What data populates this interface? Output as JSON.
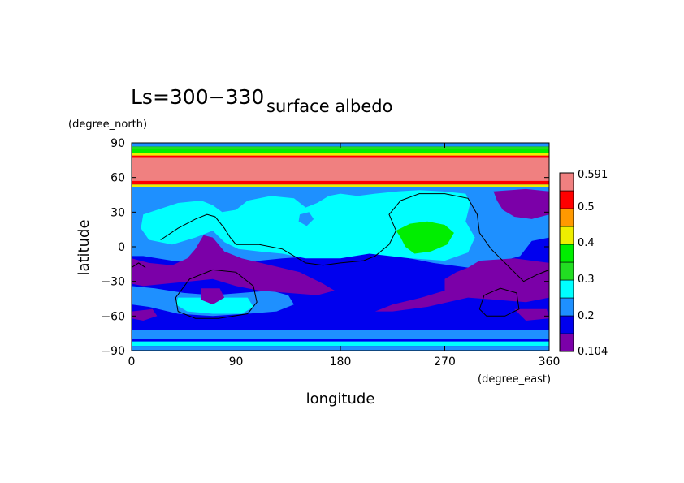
{
  "chart_data": {
    "type": "heatmap",
    "title_main": "Ls=300−330",
    "title_sub": "surface albedo",
    "ylabel": "latitude",
    "xlabel": "longitude",
    "y_unit": "(degree_north)",
    "x_unit": "(degree_east)",
    "xlim": [
      0,
      360
    ],
    "ylim": [
      -90,
      90
    ],
    "x_ticks": [
      0,
      90,
      180,
      270,
      360
    ],
    "y_ticks": [
      90,
      60,
      30,
      0,
      -30,
      -60,
      -90
    ],
    "x_tick_labels": [
      "0",
      "90",
      "180",
      "270",
      "360"
    ],
    "y_tick_labels": [
      "90",
      "60",
      "30",
      "0",
      "−30",
      "−60",
      "−90"
    ],
    "colorbar": {
      "labels": [
        "0.591",
        "0.5",
        "0.4",
        "0.3",
        "0.2",
        "0.104"
      ],
      "levels": [
        0.104,
        0.15,
        0.2,
        0.25,
        0.3,
        0.35,
        0.4,
        0.45,
        0.5,
        0.55,
        0.591
      ],
      "colors": [
        "#7b00a8",
        "#0000ee",
        "#1e90ff",
        "#00ffff",
        "#22dd22",
        "#00ee00",
        "#eeee00",
        "#ff9900",
        "#ff0000",
        "#f08080"
      ]
    },
    "background_color": "#0000ee",
    "regions": [
      {
        "color": "#1e90ff",
        "points": [
          [
            0,
            -8
          ],
          [
            0,
            52
          ],
          [
            30,
            52
          ],
          [
            90,
            52
          ],
          [
            150,
            52
          ],
          [
            200,
            52
          ],
          [
            270,
            52
          ],
          [
            320,
            52
          ],
          [
            360,
            52
          ],
          [
            360,
            8
          ],
          [
            345,
            5
          ],
          [
            335,
            -8
          ],
          [
            310,
            -15
          ],
          [
            290,
            -18
          ],
          [
            260,
            -14
          ],
          [
            230,
            -8
          ],
          [
            200,
            -5
          ],
          [
            160,
            -8
          ],
          [
            130,
            -10
          ],
          [
            110,
            -12
          ],
          [
            85,
            -18
          ],
          [
            60,
            -15
          ],
          [
            35,
            -12
          ],
          [
            10,
            -8
          ]
        ]
      },
      {
        "color": "#1e90ff",
        "points": [
          [
            0,
            -72
          ],
          [
            360,
            -72
          ],
          [
            360,
            -80
          ],
          [
            0,
            -80
          ]
        ]
      },
      {
        "color": "#1e90ff",
        "points": [
          [
            0,
            -34
          ],
          [
            20,
            -36
          ],
          [
            45,
            -40
          ],
          [
            70,
            -42
          ],
          [
            95,
            -40
          ],
          [
            120,
            -38
          ],
          [
            135,
            -42
          ],
          [
            140,
            -50
          ],
          [
            125,
            -56
          ],
          [
            100,
            -58
          ],
          [
            70,
            -60
          ],
          [
            40,
            -58
          ],
          [
            15,
            -52
          ],
          [
            0,
            -50
          ]
        ]
      },
      {
        "color": "#00ffff",
        "points": [
          [
            10,
            28
          ],
          [
            40,
            38
          ],
          [
            60,
            40
          ],
          [
            70,
            36
          ],
          [
            78,
            30
          ],
          [
            90,
            32
          ],
          [
            100,
            40
          ],
          [
            120,
            44
          ],
          [
            140,
            42
          ],
          [
            150,
            34
          ],
          [
            160,
            38
          ],
          [
            170,
            44
          ],
          [
            180,
            46
          ],
          [
            195,
            44
          ],
          [
            210,
            46
          ],
          [
            230,
            48
          ],
          [
            248,
            49
          ],
          [
            268,
            48
          ],
          [
            288,
            46
          ],
          [
            292,
            38
          ],
          [
            288,
            22
          ],
          [
            296,
            8
          ],
          [
            290,
            -5
          ],
          [
            270,
            -12
          ],
          [
            240,
            -10
          ],
          [
            205,
            -6
          ],
          [
            180,
            -10
          ],
          [
            150,
            -10
          ],
          [
            130,
            -6
          ],
          [
            110,
            -4
          ],
          [
            92,
            -2
          ],
          [
            80,
            4
          ],
          [
            70,
            14
          ],
          [
            55,
            8
          ],
          [
            35,
            2
          ],
          [
            15,
            6
          ],
          [
            8,
            16
          ]
        ]
      },
      {
        "color": "#00ffff",
        "points": [
          [
            40,
            -44
          ],
          [
            75,
            -44
          ],
          [
            100,
            -44
          ],
          [
            105,
            -52
          ],
          [
            95,
            -58
          ],
          [
            70,
            -58
          ],
          [
            48,
            -56
          ],
          [
            38,
            -50
          ]
        ]
      },
      {
        "color": "#00ee00",
        "points": [
          [
            228,
            14
          ],
          [
            240,
            20
          ],
          [
            255,
            22
          ],
          [
            270,
            19
          ],
          [
            278,
            12
          ],
          [
            272,
            2
          ],
          [
            258,
            -4
          ],
          [
            244,
            -6
          ],
          [
            236,
            0
          ],
          [
            232,
            8
          ]
        ]
      },
      {
        "color": "#1e90ff",
        "points": [
          [
            145,
            28
          ],
          [
            153,
            30
          ],
          [
            157,
            24
          ],
          [
            151,
            18
          ],
          [
            144,
            22
          ]
        ]
      },
      {
        "color": "#7b00a8",
        "points": [
          [
            0,
            -10
          ],
          [
            15,
            -14
          ],
          [
            35,
            -16
          ],
          [
            48,
            -10
          ],
          [
            55,
            -2
          ],
          [
            62,
            10
          ],
          [
            70,
            8
          ],
          [
            80,
            -4
          ],
          [
            95,
            -10
          ],
          [
            120,
            -16
          ],
          [
            145,
            -22
          ],
          [
            165,
            -32
          ],
          [
            175,
            -38
          ],
          [
            160,
            -42
          ],
          [
            135,
            -40
          ],
          [
            110,
            -38
          ],
          [
            90,
            -34
          ],
          [
            70,
            -28
          ],
          [
            50,
            -30
          ],
          [
            30,
            -32
          ],
          [
            10,
            -34
          ],
          [
            0,
            -32
          ]
        ]
      },
      {
        "color": "#7b00a8",
        "points": [
          [
            290,
            -18
          ],
          [
            300,
            -12
          ],
          [
            330,
            -10
          ],
          [
            360,
            -14
          ],
          [
            360,
            -44
          ],
          [
            340,
            -48
          ],
          [
            315,
            -46
          ],
          [
            290,
            -44
          ],
          [
            255,
            -52
          ],
          [
            225,
            -56
          ],
          [
            210,
            -56
          ],
          [
            225,
            -50
          ],
          [
            250,
            -44
          ],
          [
            270,
            -38
          ],
          [
            270,
            -28
          ],
          [
            280,
            -22
          ]
        ]
      },
      {
        "color": "#7b00a8",
        "points": [
          [
            312,
            48
          ],
          [
            340,
            50
          ],
          [
            360,
            48
          ],
          [
            360,
            28
          ],
          [
            345,
            24
          ],
          [
            330,
            26
          ],
          [
            320,
            32
          ],
          [
            315,
            40
          ]
        ]
      },
      {
        "color": "#7b00a8",
        "points": [
          [
            0,
            -56
          ],
          [
            18,
            -54
          ],
          [
            22,
            -60
          ],
          [
            10,
            -64
          ],
          [
            0,
            -62
          ]
        ]
      },
      {
        "color": "#7b00a8",
        "points": [
          [
            60,
            -36
          ],
          [
            76,
            -36
          ],
          [
            80,
            -44
          ],
          [
            70,
            -50
          ],
          [
            60,
            -46
          ]
        ]
      },
      {
        "color": "#7b00a8",
        "points": [
          [
            330,
            -54
          ],
          [
            358,
            -54
          ],
          [
            360,
            -62
          ],
          [
            340,
            -64
          ]
        ]
      },
      {
        "color": "#f08080",
        "points": [
          [
            0,
            55
          ],
          [
            360,
            55
          ],
          [
            360,
            79
          ],
          [
            0,
            79
          ]
        ]
      },
      {
        "color": "#ff0000",
        "points": [
          [
            0,
            54
          ],
          [
            360,
            54
          ],
          [
            360,
            57
          ],
          [
            0,
            57
          ]
        ]
      },
      {
        "color": "#ff0000",
        "points": [
          [
            0,
            77
          ],
          [
            360,
            77
          ],
          [
            360,
            79
          ],
          [
            0,
            79
          ]
        ]
      },
      {
        "color": "#eeee00",
        "points": [
          [
            0,
            52
          ],
          [
            360,
            52
          ],
          [
            360,
            54
          ],
          [
            0,
            54
          ]
        ]
      },
      {
        "color": "#eeee00",
        "points": [
          [
            0,
            79
          ],
          [
            360,
            79
          ],
          [
            360,
            81
          ],
          [
            0,
            81
          ]
        ]
      },
      {
        "color": "#00ee00",
        "points": [
          [
            0,
            81
          ],
          [
            360,
            81
          ],
          [
            360,
            85
          ],
          [
            0,
            85
          ]
        ]
      },
      {
        "color": "#22dd22",
        "points": [
          [
            0,
            85
          ],
          [
            360,
            85
          ],
          [
            360,
            87
          ],
          [
            0,
            87
          ]
        ]
      },
      {
        "color": "#1e90ff",
        "points": [
          [
            0,
            87
          ],
          [
            360,
            87
          ],
          [
            360,
            90
          ],
          [
            0,
            90
          ]
        ]
      },
      {
        "color": "#00ffff",
        "points": [
          [
            0,
            -82
          ],
          [
            360,
            -82
          ],
          [
            360,
            -86
          ],
          [
            0,
            -86
          ]
        ]
      },
      {
        "color": "#1e90ff",
        "points": [
          [
            0,
            -86
          ],
          [
            360,
            -86
          ],
          [
            360,
            -90
          ],
          [
            0,
            -90
          ]
        ]
      }
    ],
    "topography_contours": [
      [
        [
          25,
          6
        ],
        [
          40,
          16
        ],
        [
          55,
          24
        ],
        [
          65,
          28
        ],
        [
          72,
          26
        ],
        [
          80,
          16
        ],
        [
          85,
          8
        ],
        [
          90,
          2
        ],
        [
          110,
          2
        ],
        [
          130,
          -2
        ],
        [
          150,
          -14
        ],
        [
          165,
          -16
        ],
        [
          180,
          -14
        ],
        [
          200,
          -12
        ],
        [
          210,
          -8
        ],
        [
          222,
          2
        ],
        [
          228,
          14
        ],
        [
          222,
          28
        ],
        [
          232,
          40
        ],
        [
          248,
          46
        ],
        [
          270,
          46
        ],
        [
          290,
          42
        ],
        [
          298,
          28
        ],
        [
          300,
          12
        ],
        [
          310,
          -2
        ],
        [
          320,
          -12
        ],
        [
          330,
          -22
        ],
        [
          338,
          -30
        ],
        [
          350,
          -24
        ],
        [
          360,
          -20
        ]
      ],
      [
        [
          40,
          -56
        ],
        [
          38,
          -44
        ],
        [
          50,
          -28
        ],
        [
          70,
          -20
        ],
        [
          90,
          -22
        ],
        [
          105,
          -34
        ],
        [
          108,
          -48
        ],
        [
          100,
          -58
        ],
        [
          75,
          -62
        ],
        [
          55,
          -62
        ],
        [
          40,
          -56
        ]
      ],
      [
        [
          300,
          -54
        ],
        [
          304,
          -42
        ],
        [
          318,
          -36
        ],
        [
          332,
          -40
        ],
        [
          334,
          -54
        ],
        [
          322,
          -60
        ],
        [
          306,
          -60
        ],
        [
          300,
          -54
        ]
      ],
      [
        [
          0,
          -18
        ],
        [
          6,
          -14
        ],
        [
          12,
          -18
        ]
      ]
    ]
  }
}
